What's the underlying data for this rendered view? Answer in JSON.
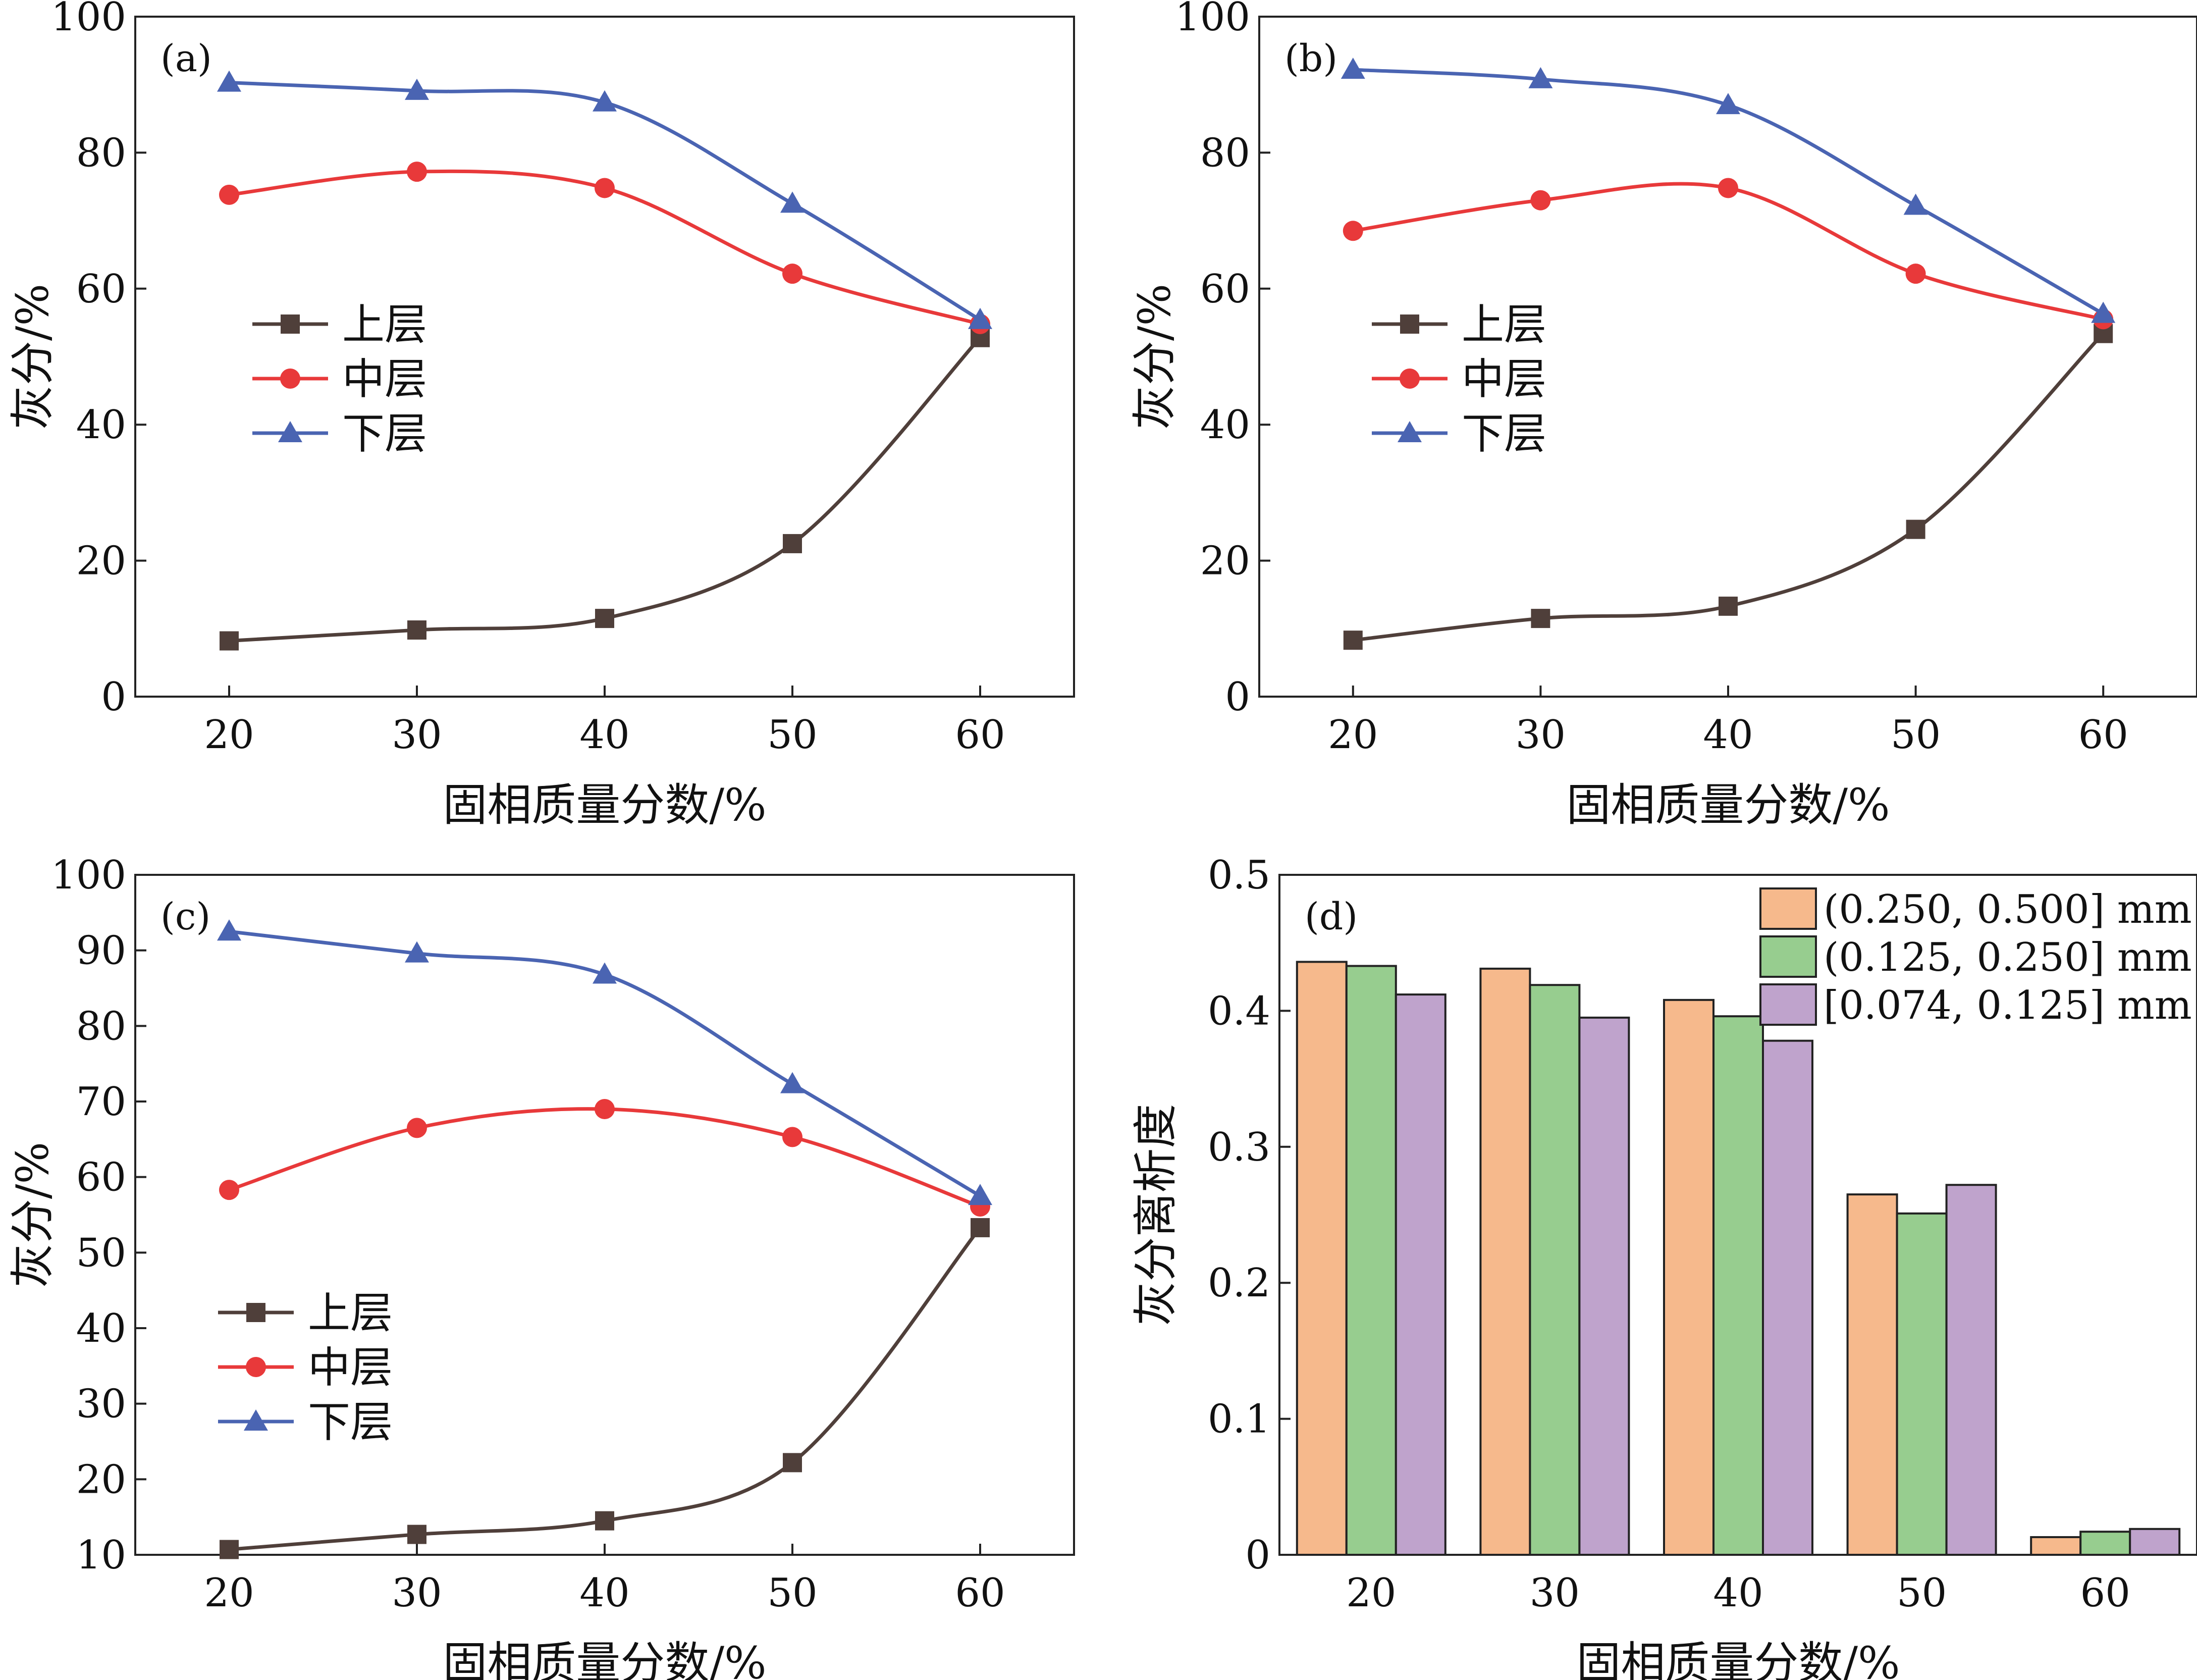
{
  "colors": {
    "upper": "#4f3f3a",
    "middle": "#e8393a",
    "lower": "#4a64b2",
    "bar1": "#f6b98c",
    "bar2": "#97cd8f",
    "bar3": "#bfa3cc"
  },
  "chart_data": [
    {
      "panel": "(a)",
      "type": "line",
      "xlabel": "固相质量分数/%",
      "ylabel": "灰分/%",
      "x": [
        20,
        30,
        40,
        50,
        60
      ],
      "xticks": [
        "20",
        "30",
        "40",
        "50",
        "60"
      ],
      "ylim": [
        0,
        100
      ],
      "yticks": [
        "0",
        "20",
        "40",
        "60",
        "80",
        "100"
      ],
      "legend_position": "center-left",
      "series": [
        {
          "name": "上层",
          "marker": "square",
          "values": [
            8.2,
            9.8,
            11.5,
            22.5,
            52.8
          ]
        },
        {
          "name": "中层",
          "marker": "circle",
          "values": [
            73.8,
            77.2,
            74.8,
            62.2,
            54.8
          ]
        },
        {
          "name": "下层",
          "marker": "triangle",
          "values": [
            90.3,
            89.1,
            87.4,
            72.5,
            55.4
          ]
        }
      ]
    },
    {
      "panel": "(b)",
      "type": "line",
      "xlabel": "固相质量分数/%",
      "ylabel": "灰分/%",
      "x": [
        20,
        30,
        40,
        50,
        60
      ],
      "xticks": [
        "20",
        "30",
        "40",
        "50",
        "60"
      ],
      "ylim": [
        0,
        100
      ],
      "yticks": [
        "0",
        "20",
        "40",
        "60",
        "80",
        "100"
      ],
      "legend_position": "center-left",
      "series": [
        {
          "name": "上层",
          "marker": "square",
          "values": [
            8.3,
            11.5,
            13.3,
            24.6,
            53.4
          ]
        },
        {
          "name": "中层",
          "marker": "circle",
          "values": [
            68.5,
            73.0,
            74.8,
            62.2,
            55.5
          ]
        },
        {
          "name": "下层",
          "marker": "triangle",
          "values": [
            92.2,
            90.8,
            87.0,
            72.2,
            56.3
          ]
        }
      ]
    },
    {
      "panel": "(c)",
      "type": "line",
      "xlabel": "固相质量分数/%",
      "ylabel": "灰分/%",
      "x": [
        20,
        30,
        40,
        50,
        60
      ],
      "xticks": [
        "20",
        "30",
        "40",
        "50",
        "60"
      ],
      "ylim": [
        10,
        100
      ],
      "yticks": [
        "10",
        "20",
        "30",
        "40",
        "50",
        "60",
        "70",
        "80",
        "90",
        "100"
      ],
      "legend_position": "lower-left",
      "series": [
        {
          "name": "上层",
          "marker": "square",
          "values": [
            10.7,
            12.7,
            14.5,
            22.2,
            53.3
          ]
        },
        {
          "name": "中层",
          "marker": "circle",
          "values": [
            58.3,
            66.5,
            69.0,
            65.3,
            56.1
          ]
        },
        {
          "name": "下层",
          "marker": "triangle",
          "values": [
            92.5,
            89.6,
            86.8,
            72.3,
            57.5
          ]
        }
      ]
    },
    {
      "panel": "(d)",
      "type": "bar",
      "xlabel": "固相质量分数/%",
      "ylabel": "灰分离析度",
      "categories": [
        "20",
        "30",
        "40",
        "50",
        "60"
      ],
      "ylim": [
        0,
        0.5
      ],
      "yticks": [
        "0",
        "0.1",
        "0.2",
        "0.3",
        "0.4",
        "0.5"
      ],
      "legend_position": "top-right",
      "series": [
        {
          "name": "(0.250, 0.500] mm",
          "values": [
            0.436,
            0.431,
            0.408,
            0.265,
            0.013
          ]
        },
        {
          "name": "(0.125, 0.250] mm",
          "values": [
            0.433,
            0.419,
            0.396,
            0.251,
            0.017
          ]
        },
        {
          "name": "[0.074, 0.125] mm",
          "values": [
            0.412,
            0.395,
            0.378,
            0.272,
            0.019
          ]
        }
      ]
    }
  ]
}
